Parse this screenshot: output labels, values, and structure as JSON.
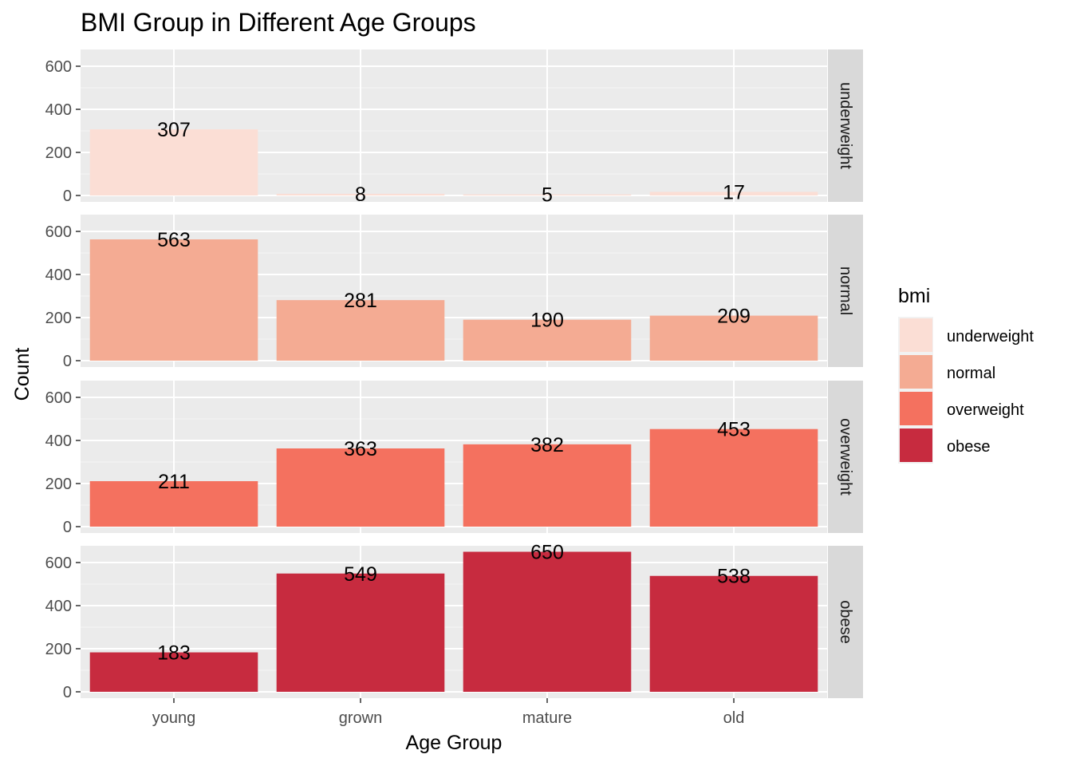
{
  "chart_data": {
    "type": "bar",
    "title": "BMI Group in Different Age Groups",
    "xlabel": "Age Group",
    "ylabel": "Count",
    "categories": [
      "young",
      "grown",
      "mature",
      "old"
    ],
    "ylim": [
      0,
      680
    ],
    "yticks": [
      0,
      200,
      400,
      600
    ],
    "facets": [
      "underweight",
      "normal",
      "overweight",
      "obese"
    ],
    "series": [
      {
        "name": "underweight",
        "color": "#FBDED5",
        "values": [
          307,
          8,
          5,
          17
        ]
      },
      {
        "name": "normal",
        "color": "#F4AB93",
        "values": [
          563,
          281,
          190,
          209
        ]
      },
      {
        "name": "overweight",
        "color": "#F4715F",
        "values": [
          211,
          363,
          382,
          453
        ]
      },
      {
        "name": "obese",
        "color": "#C72B3F",
        "values": [
          183,
          549,
          650,
          538
        ]
      }
    ],
    "legend": {
      "title": "bmi",
      "position": "right"
    },
    "grid": true,
    "panel_background": "#EBEBEB",
    "strip_background": "#D9D9D9"
  }
}
